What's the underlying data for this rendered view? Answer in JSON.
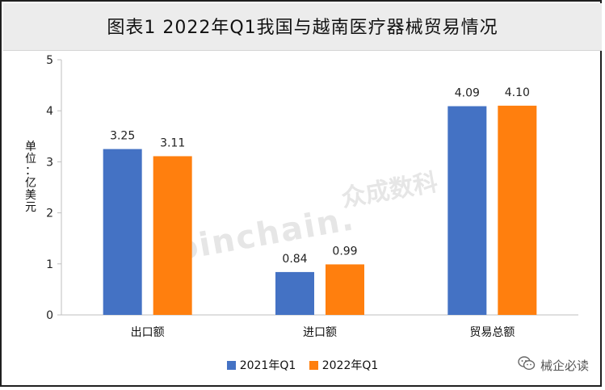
{
  "header": {
    "title": "图表1  2022年Q1我国与越南医疗器械贸易情况"
  },
  "watermark": {
    "text": "Joinchain.",
    "cn_text": "众成数科"
  },
  "brand": {
    "label": "械企必读",
    "icon": "wechat-icon"
  },
  "colors": {
    "series_2021": "#4472C4",
    "series_2022": "#FF7F0E",
    "axis": "#bfbfbf"
  },
  "chart_data": {
    "type": "bar",
    "title": "图表1  2022年Q1我国与越南医疗器械贸易情况",
    "categories": [
      "出口额",
      "进口额",
      "贸易总额"
    ],
    "series": [
      {
        "name": "2021年Q1",
        "values": [
          3.25,
          0.84,
          4.09
        ],
        "labels": [
          "3.25",
          "0.84",
          "4.09"
        ]
      },
      {
        "name": "2022年Q1",
        "values": [
          3.11,
          0.99,
          4.1
        ],
        "labels": [
          "3.11",
          "0.99",
          "4.10"
        ]
      }
    ],
    "ylabel": "单位：亿美元",
    "ylabel_chars": [
      "单",
      "位",
      "：",
      "亿",
      "美",
      "元"
    ],
    "ylim": [
      0,
      5
    ],
    "yticks": [
      "0",
      "1",
      "2",
      "3",
      "4",
      "5"
    ],
    "grid": false,
    "legend_position": "bottom"
  }
}
